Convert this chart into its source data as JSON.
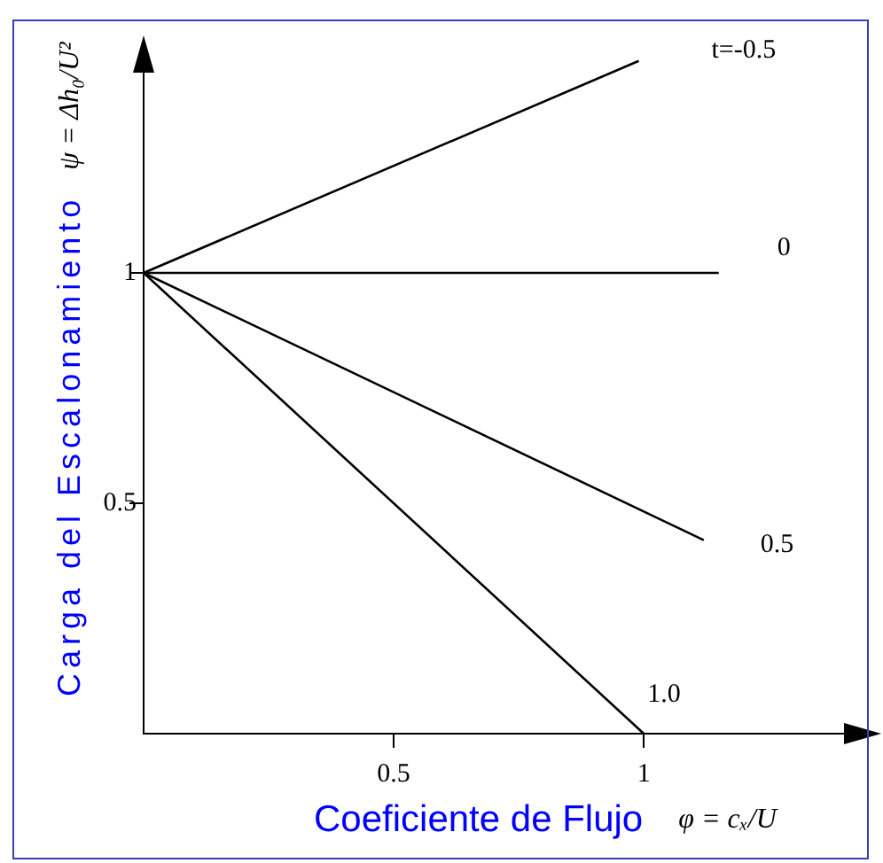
{
  "chart_data": {
    "type": "line",
    "xlabel": "Coeficiente de Flujo",
    "ylabel": "Carga del Escalonamiento",
    "annotations": [
      "ψ = Δh₀/U²",
      "φ = cₓ/U"
    ],
    "series": [
      {
        "name": "t=-0.5",
        "color": "#000000",
        "x": [
          0,
          0.99
        ],
        "values": [
          1,
          1.46
        ]
      },
      {
        "name": "0",
        "color": "#000000",
        "x": [
          0,
          1.15
        ],
        "values": [
          1,
          1
        ]
      },
      {
        "name": "0.5",
        "color": "#000000",
        "x": [
          0,
          1.12
        ],
        "values": [
          1,
          0.42
        ]
      },
      {
        "name": "1.0",
        "color": "#000000",
        "x": [
          0,
          1
        ],
        "values": [
          1,
          0
        ]
      }
    ],
    "xlim": [
      0,
      1.45
    ],
    "ylim": [
      0,
      1.5
    ],
    "xticks": [
      0.5,
      1
    ],
    "yticks": [
      0.5,
      1
    ],
    "marker": "none"
  }
}
